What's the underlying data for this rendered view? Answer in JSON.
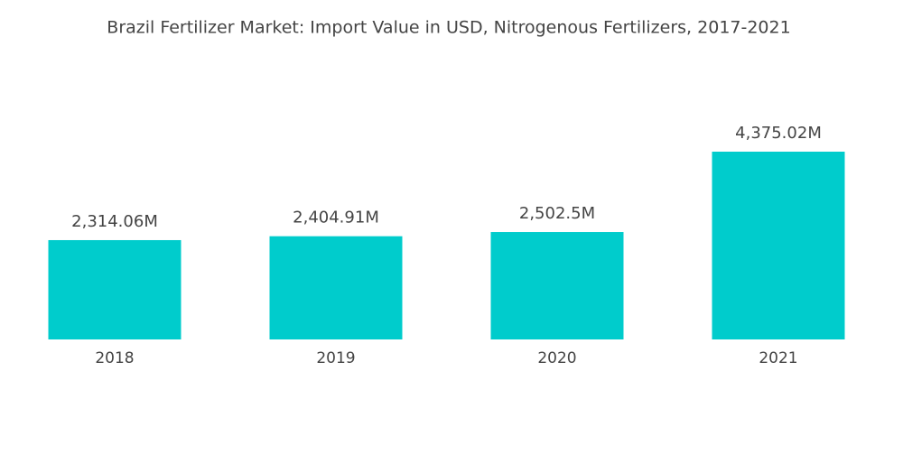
{
  "chart_data": {
    "type": "bar",
    "title": "Brazil Fertilizer Market: Import Value in USD, Nitrogenous Fertilizers, 2017-2021",
    "categories": [
      "2018",
      "2019",
      "2020",
      "2021"
    ],
    "values": [
      2314.06,
      2404.91,
      2502.5,
      4375.02
    ],
    "value_labels": [
      "2,314.06M",
      "2,404.91M",
      "2,502.5M",
      "4,375.02M"
    ],
    "color": "#00cccc"
  }
}
